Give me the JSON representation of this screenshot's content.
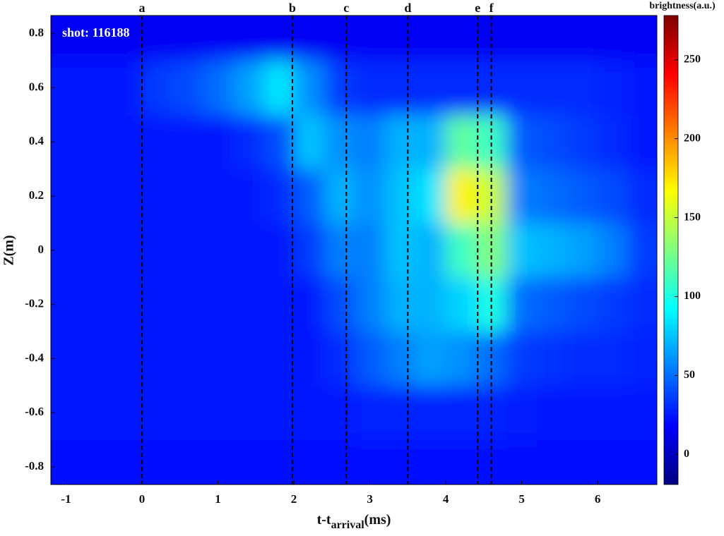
{
  "chart_data": {
    "type": "heatmap",
    "annotation": "shot: 116188",
    "xlabel": [
      "t-t",
      "arrival",
      "(ms)"
    ],
    "ylabel": "Z(m)",
    "colorbar_label": "brightness(a.u.)",
    "colormap": "jet",
    "xlim": [
      -1.2,
      6.78
    ],
    "ylim": [
      -0.865,
      0.867
    ],
    "xticks": [
      -1,
      0,
      1,
      2,
      3,
      4,
      5,
      6
    ],
    "yticks": [
      0.8,
      0.6,
      0.4,
      0.2,
      0,
      -0.2,
      -0.4,
      -0.6,
      -0.8
    ],
    "clim": [
      -19,
      278
    ],
    "cticks": [
      0,
      50,
      100,
      150,
      200,
      250
    ],
    "markers": [
      {
        "label": "a",
        "x": 0
      },
      {
        "label": "b",
        "x": 1.98
      },
      {
        "label": "c",
        "x": 2.69
      },
      {
        "label": "d",
        "x": 3.5
      },
      {
        "label": "e",
        "x": 4.42
      },
      {
        "label": "f",
        "x": 4.6
      }
    ],
    "x": [
      -1.0,
      -0.6,
      -0.2,
      0.2,
      0.6,
      1.0,
      1.4,
      1.8,
      2.2,
      2.6,
      3.0,
      3.4,
      3.8,
      4.2,
      4.6,
      5.0,
      5.4,
      5.8,
      6.2,
      6.6
    ],
    "y": [
      0.8,
      0.6,
      0.4,
      0.2,
      0,
      -0.2,
      -0.4,
      -0.6,
      -0.8
    ],
    "z": [
      [
        15,
        15,
        15,
        15,
        15,
        15,
        15,
        15,
        15,
        15,
        15,
        15,
        15,
        15,
        15,
        15,
        15,
        15,
        15,
        15
      ],
      [
        25,
        25,
        25,
        35,
        40,
        50,
        65,
        85,
        60,
        35,
        30,
        30,
        30,
        30,
        30,
        30,
        30,
        30,
        28,
        25
      ],
      [
        25,
        25,
        25,
        25,
        25,
        25,
        30,
        40,
        75,
        60,
        55,
        70,
        70,
        120,
        110,
        45,
        40,
        35,
        30,
        25
      ],
      [
        25,
        25,
        25,
        25,
        25,
        25,
        25,
        30,
        45,
        70,
        60,
        75,
        85,
        170,
        150,
        55,
        50,
        45,
        40,
        30
      ],
      [
        25,
        25,
        25,
        25,
        25,
        25,
        25,
        25,
        35,
        55,
        55,
        75,
        70,
        110,
        130,
        75,
        70,
        65,
        55,
        35
      ],
      [
        25,
        25,
        25,
        25,
        25,
        25,
        25,
        25,
        25,
        40,
        55,
        70,
        70,
        80,
        100,
        50,
        45,
        40,
        35,
        30
      ],
      [
        25,
        25,
        25,
        25,
        25,
        25,
        25,
        25,
        25,
        30,
        45,
        55,
        65,
        60,
        50,
        35,
        32,
        30,
        30,
        28
      ],
      [
        25,
        25,
        25,
        25,
        25,
        25,
        25,
        25,
        25,
        25,
        28,
        28,
        28,
        28,
        28,
        26,
        25,
        25,
        25,
        25
      ],
      [
        22,
        22,
        22,
        22,
        22,
        22,
        22,
        22,
        22,
        22,
        22,
        22,
        22,
        22,
        22,
        22,
        22,
        22,
        22,
        22
      ]
    ]
  }
}
